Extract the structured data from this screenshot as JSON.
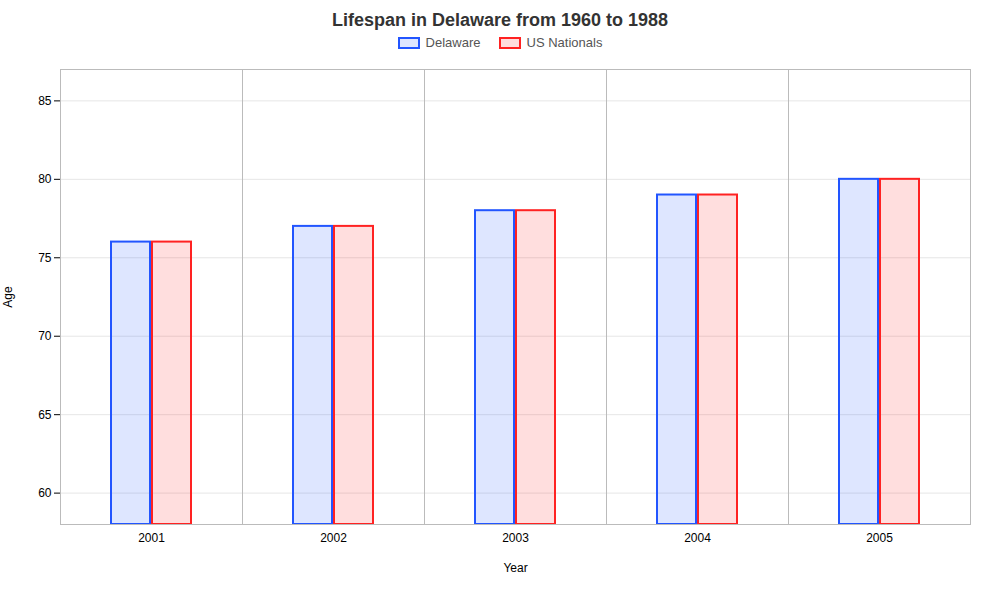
{
  "chart_data": {
    "type": "bar",
    "title": "Lifespan in Delaware from 1960 to 1988",
    "x_label": "Year",
    "y_label": "Age",
    "categories": [
      2001,
      2002,
      2003,
      2004,
      2005
    ],
    "series": [
      {
        "name": "Delaware",
        "color": "#2255ff",
        "values": [
          76,
          77,
          78,
          79,
          80
        ]
      },
      {
        "name": "US Nationals",
        "color": "#ff2222",
        "values": [
          76,
          77,
          78,
          79,
          80
        ]
      }
    ],
    "ylim": [
      58,
      87
    ],
    "yticks": [
      60,
      65,
      70,
      75,
      80,
      85
    ],
    "grid": true,
    "legend": "top"
  }
}
